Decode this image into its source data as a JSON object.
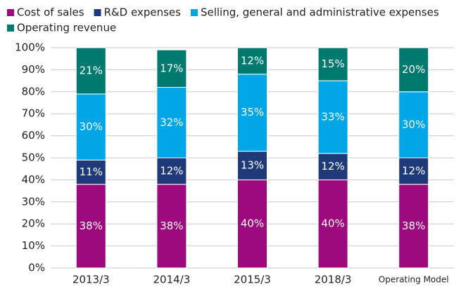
{
  "chart_data": {
    "type": "stacked_bar",
    "categories": [
      "2013/3",
      "2014/3",
      "2015/3",
      "2018/3",
      "Operating Model"
    ],
    "series": [
      {
        "name": "Cost of sales",
        "color": "#9c0a7d",
        "values": [
          38,
          38,
          40,
          40,
          38
        ],
        "value_labels": [
          "38%",
          "38%",
          "40%",
          "40%",
          "38%"
        ]
      },
      {
        "name": "R&D expenses",
        "color": "#1f3a78",
        "values": [
          11,
          12,
          13,
          12,
          12
        ],
        "value_labels": [
          "11%",
          "12%",
          "13%",
          "12%",
          "12%"
        ]
      },
      {
        "name": "Selling, general and administrative expenses",
        "color": "#00a6e6",
        "values": [
          30,
          32,
          35,
          33,
          30
        ],
        "value_labels": [
          "30%",
          "32%",
          "35%",
          "33%",
          "30%"
        ]
      },
      {
        "name": "Operating revenue",
        "color": "#007a6e",
        "values": [
          21,
          17,
          12,
          15,
          20
        ],
        "value_labels": [
          "21%",
          "17%",
          "12%",
          "15%",
          "20%"
        ]
      }
    ],
    "ylim": [
      0,
      100
    ],
    "yticks": [
      {
        "value": 0,
        "label": "0%"
      },
      {
        "value": 10,
        "label": "10%"
      },
      {
        "value": 20,
        "label": "20%"
      },
      {
        "value": 30,
        "label": "30%"
      },
      {
        "value": 40,
        "label": "40%"
      },
      {
        "value": 50,
        "label": "50%"
      },
      {
        "value": 60,
        "label": "60%"
      },
      {
        "value": 70,
        "label": "70%"
      },
      {
        "value": 80,
        "label": "80%"
      },
      {
        "value": 90,
        "label": "90%"
      },
      {
        "value": 100,
        "label": "100%"
      }
    ],
    "grid": true
  }
}
